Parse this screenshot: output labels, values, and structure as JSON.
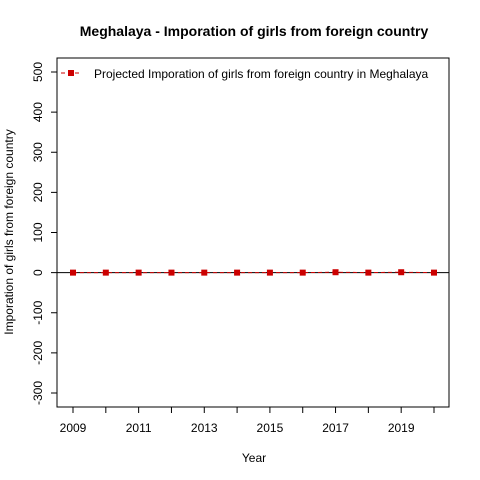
{
  "chart_data": {
    "type": "line",
    "title": "Meghalaya  -  Imporation of girls from foreign country",
    "xlabel": "Year",
    "ylabel": "Imporation of girls from foreign country",
    "x": [
      2009,
      2010,
      2011,
      2012,
      2013,
      2014,
      2015,
      2016,
      2017,
      2018,
      2019,
      2020
    ],
    "series": [
      {
        "name": "Projected  Imporation of girls from foreign country  in  Meghalaya",
        "values": [
          0,
          0,
          0,
          0,
          0,
          0,
          0,
          0,
          1,
          0,
          1,
          0
        ],
        "color": "#cc0000",
        "line_style": "dashed",
        "marker": "square"
      }
    ],
    "xlim": [
      2009,
      2020
    ],
    "ylim": [
      -300,
      500
    ],
    "x_ticks": [
      2009,
      2010,
      2011,
      2012,
      2013,
      2014,
      2015,
      2016,
      2017,
      2018,
      2019,
      2020
    ],
    "x_tick_labels": [
      "2009",
      "",
      "2011",
      "",
      "2013",
      "",
      "2015",
      "",
      "2017",
      "",
      "2019",
      ""
    ],
    "y_ticks": [
      -300,
      -200,
      -100,
      0,
      100,
      200,
      300,
      400,
      500
    ],
    "y_tick_labels": [
      "-300",
      "-200",
      "-100",
      "0",
      "100",
      "200",
      "300",
      "400",
      "500"
    ],
    "reference_line_y": 0,
    "grid": false,
    "legend_position": "top-left"
  }
}
